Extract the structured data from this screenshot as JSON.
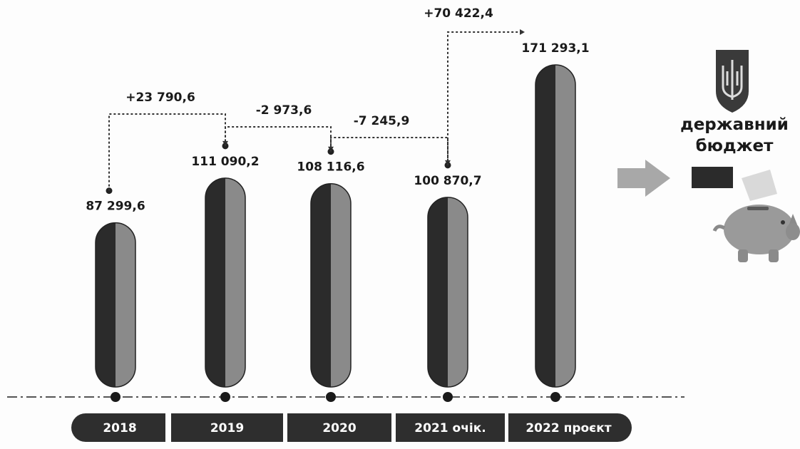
{
  "chart_data": {
    "type": "bar",
    "categories": [
      "2018",
      "2019",
      "2020",
      "2021 очік.",
      "2022 проєкт"
    ],
    "values": [
      87299.6,
      111090.2,
      108116.6,
      100870.7,
      171293.1
    ],
    "value_labels": [
      "87 299,6",
      "111 090,2",
      "108 116,6",
      "100 870,7",
      "171 293,1"
    ],
    "differences": [
      "+23 790,6",
      "-2 973,6",
      "-7 245,9",
      "+70 422,4"
    ],
    "ylim": [
      0,
      180000
    ],
    "title": "",
    "xlabel": "",
    "ylabel": ""
  },
  "side": {
    "budget_label_line1": "державний",
    "budget_label_line2": "бюджет",
    "emblem_icon": "trident-icon",
    "arrow_icon": "arrow-right-icon",
    "piggy_icon": "piggy-bank-icon"
  },
  "colors": {
    "bar_dark": "#2b2b2b",
    "bar_light": "#8a8a8a",
    "label_box": "#2e2e2e",
    "arrow": "#a8a8a8",
    "emblem": "#3a3a3a"
  }
}
